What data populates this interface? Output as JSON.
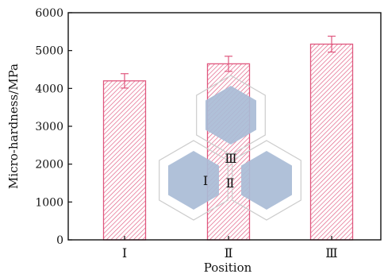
{
  "chart_data": {
    "type": "bar",
    "categories": [
      "Ⅰ",
      "Ⅱ",
      "Ⅲ"
    ],
    "values": [
      4200,
      4650,
      5170
    ],
    "errors": [
      190,
      200,
      210
    ],
    "xlabel": "Position",
    "ylabel": "Micro-hardness/MPa",
    "ylim": [
      0,
      6000
    ],
    "yticks": [
      0,
      1000,
      2000,
      3000,
      4000,
      5000,
      6000
    ],
    "grid": false,
    "legend": "none",
    "bar_color": "#e0577e",
    "bar_pattern": "diagonal-hatch",
    "inset": {
      "description_labels": [
        "Ⅲ",
        "Ⅰ",
        "Ⅱ"
      ],
      "hex_fill": "#a9bcd6",
      "hex_outline": "#cccccc"
    }
  }
}
